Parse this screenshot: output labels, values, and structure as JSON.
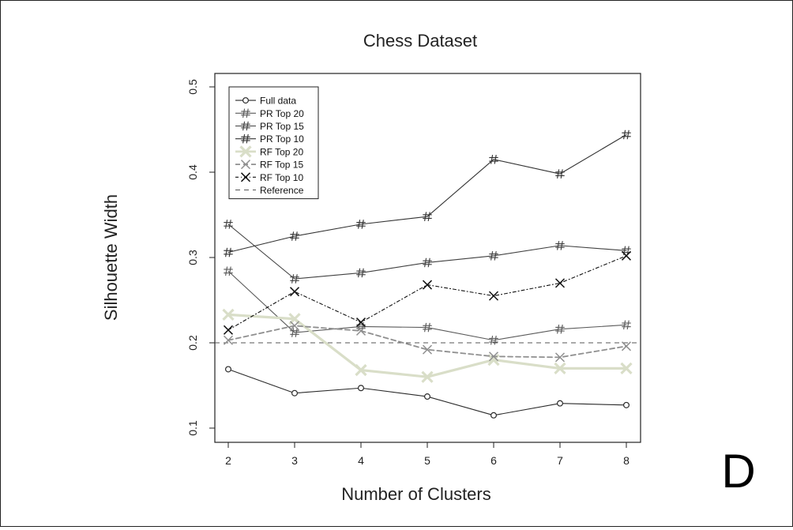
{
  "figure": {
    "panel_letter": "D"
  },
  "chart_data": {
    "type": "line",
    "title": "Chess Dataset",
    "xlabel": "Number of Clusters",
    "ylabel": "Silhouette Width",
    "x": [
      2,
      3,
      4,
      5,
      6,
      7,
      8
    ],
    "xlim": [
      2,
      8
    ],
    "ylim": [
      0.1,
      0.5
    ],
    "xticks": [
      "2",
      "3",
      "4",
      "5",
      "6",
      "7",
      "8"
    ],
    "yticks": [
      {
        "value": 0.1,
        "label": "0.1"
      },
      {
        "value": 0.2,
        "label": "0.2"
      },
      {
        "value": 0.3,
        "label": "0.3"
      },
      {
        "value": 0.4,
        "label": "0.4"
      },
      {
        "value": 0.5,
        "label": "0.5"
      }
    ],
    "grid": false,
    "legend_position": "top-left",
    "series": [
      {
        "name": "Full data",
        "values": [
          0.169,
          0.141,
          0.147,
          0.137,
          0.115,
          0.129,
          0.127
        ],
        "color": "#2a2a2a",
        "marker": "o",
        "dash": "solid",
        "width": 1.1
      },
      {
        "name": "PR Top 20",
        "values": [
          0.284,
          0.212,
          0.219,
          0.218,
          0.203,
          0.216,
          0.221
        ],
        "color": "#5a5a5a",
        "marker": "#",
        "dash": "solid",
        "width": 1.1
      },
      {
        "name": "PR Top 15",
        "values": [
          0.339,
          0.275,
          0.282,
          0.294,
          0.302,
          0.314,
          0.308
        ],
        "color": "#404040",
        "marker": "#",
        "dash": "solid",
        "width": 1.1
      },
      {
        "name": "PR Top 10",
        "values": [
          0.306,
          0.325,
          0.339,
          0.348,
          0.415,
          0.398,
          0.444
        ],
        "color": "#333333",
        "marker": "#",
        "dash": "solid",
        "width": 1.1
      },
      {
        "name": "RF Top 20",
        "values": [
          0.233,
          0.228,
          0.168,
          0.16,
          0.18,
          0.17,
          0.17
        ],
        "color": "#d9dec8",
        "marker": "x",
        "dash": "solid",
        "width": 3.2
      },
      {
        "name": "RF Top 15",
        "values": [
          0.203,
          0.22,
          0.214,
          0.192,
          0.184,
          0.183,
          0.196
        ],
        "color": "#8f8f8f",
        "marker": "x",
        "dash": "6,4",
        "width": 1.8
      },
      {
        "name": "RF Top 10",
        "values": [
          0.215,
          0.26,
          0.224,
          0.268,
          0.255,
          0.27,
          0.302
        ],
        "color": "#111111",
        "marker": "x",
        "dash": "4,3,1,3",
        "width": 1.1
      }
    ],
    "reference_line": {
      "name": "Reference",
      "value": 0.2,
      "color": "#555555",
      "dash": "6,5"
    }
  }
}
